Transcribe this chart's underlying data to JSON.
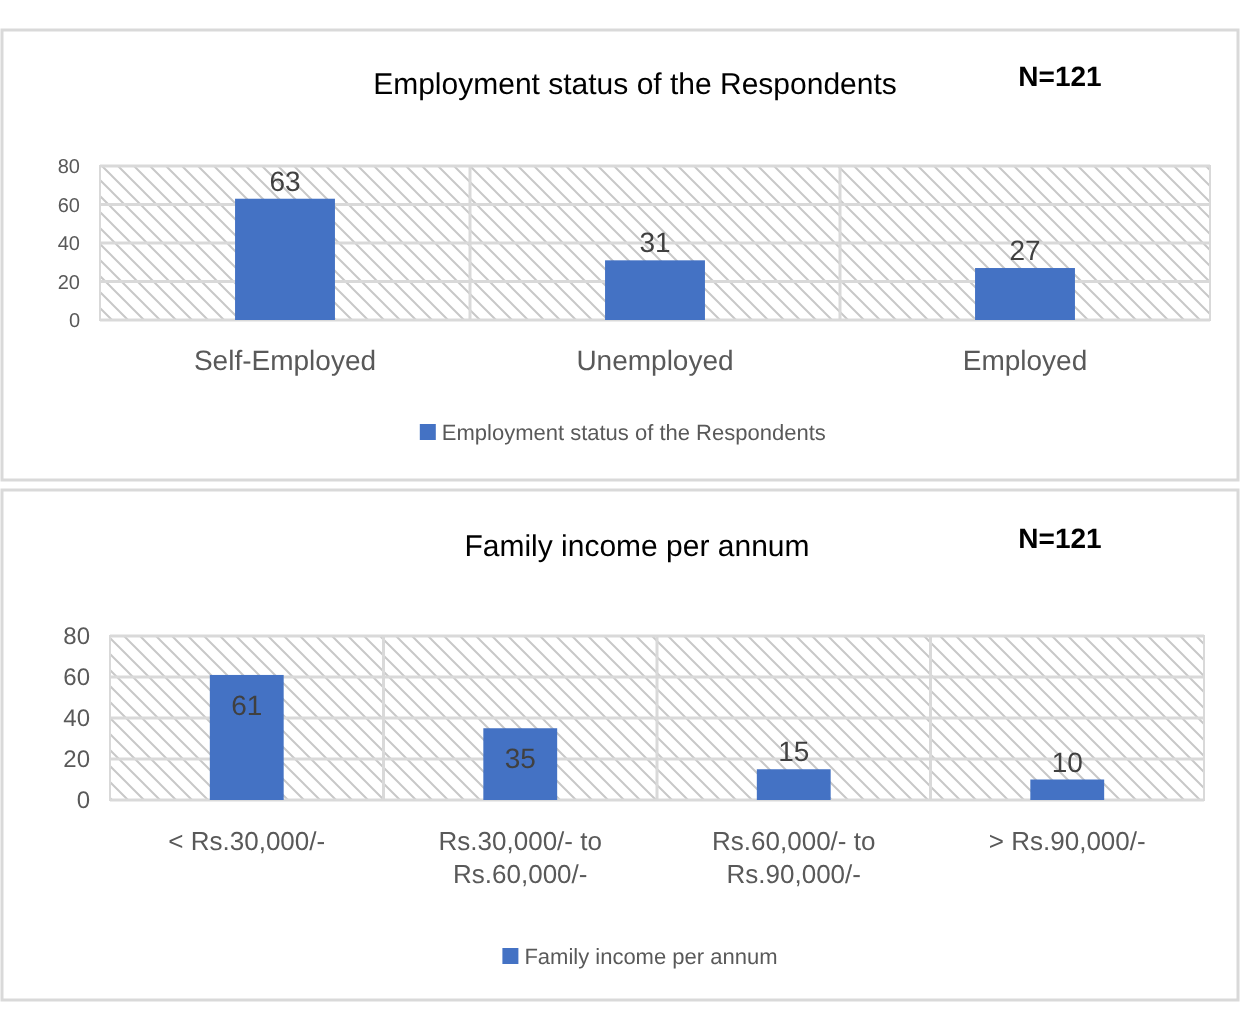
{
  "chart_data": [
    {
      "type": "bar",
      "title": "Employment status of the Respondents",
      "annotations": [
        "N=121"
      ],
      "categories": [
        "Self-Employed",
        "Unemployed",
        "Employed"
      ],
      "series": [
        {
          "name": "Employment status of the Respondents",
          "color": "#4472c4",
          "values": [
            63,
            31,
            27
          ]
        }
      ],
      "ylim": [
        0,
        80
      ],
      "yticks": [
        0,
        20,
        40,
        60,
        80
      ],
      "grid": true,
      "legend": "bottom",
      "data_labels": true
    },
    {
      "type": "bar",
      "title": "Family income per annum",
      "annotations": [
        "N=121"
      ],
      "categories": [
        "< Rs.30,000/-",
        "Rs.30,000/- to Rs.60,000/-",
        "Rs.60,000/- to Rs.90,000/-",
        "> Rs.90,000/-"
      ],
      "series": [
        {
          "name": "Family income per annum",
          "color": "#4472c4",
          "values": [
            61,
            35,
            15,
            10
          ]
        }
      ],
      "ylim": [
        0,
        80
      ],
      "yticks": [
        0,
        20,
        40,
        60,
        80
      ],
      "grid": true,
      "legend": "bottom",
      "data_labels": true
    }
  ]
}
